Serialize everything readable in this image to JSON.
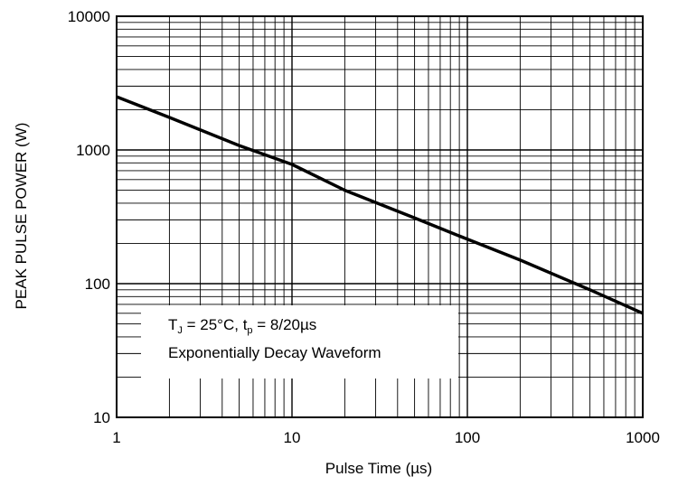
{
  "chart_data": {
    "type": "line",
    "title": "",
    "xlabel": "Pulse Time (µs)",
    "ylabel": "PEAK PULSE POWER (W)",
    "xscale": "log",
    "yscale": "log",
    "xlim": [
      1,
      1000
    ],
    "ylim": [
      10,
      10000
    ],
    "grid": true,
    "x_ticks": [
      1,
      10,
      100,
      1000
    ],
    "y_ticks": [
      10,
      100,
      1000,
      10000
    ],
    "x_tick_labels": [
      "1",
      "10",
      "100",
      "1000"
    ],
    "y_tick_labels": [
      "10",
      "100",
      "1000",
      "10000"
    ],
    "series": [
      {
        "x": [
          1,
          2,
          5,
          10,
          20,
          50,
          100,
          200,
          500,
          1000
        ],
        "y": [
          2500,
          1750,
          1080,
          780,
          500,
          310,
          215,
          150,
          90,
          60
        ],
        "color": "#000000"
      }
    ],
    "annotation": {
      "line1": {
        "T": "T",
        "J": "J",
        "mid": " = 25°C, t",
        "p": "p",
        "end": " = 8/20µs"
      },
      "line2": "Exponentially Decay Waveform"
    }
  }
}
